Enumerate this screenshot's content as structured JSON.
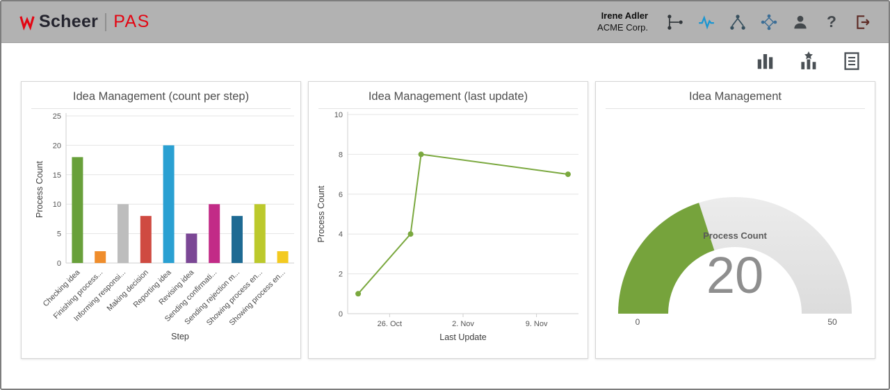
{
  "header": {
    "logo": {
      "brand": "Scheer",
      "product": "PAS"
    },
    "user": {
      "name": "Irene Adler",
      "company": "ACME Corp."
    },
    "icons": [
      {
        "name": "process-designer-icon",
        "color": "#33383c"
      },
      {
        "name": "monitoring-pulse-icon",
        "color": "#1b96d1",
        "active": true
      },
      {
        "name": "hierarchy-icon",
        "color": "#37505e"
      },
      {
        "name": "network-icon",
        "color": "#3c6e96"
      },
      {
        "name": "user-icon",
        "color": "#43484c"
      },
      {
        "name": "help-icon",
        "color": "#43484c"
      },
      {
        "name": "logout-icon",
        "color": "#5d2a24"
      }
    ]
  },
  "toolbar": {
    "icons": [
      {
        "name": "column-chart-icon",
        "color": "#4a5055"
      },
      {
        "name": "favorite-chart-icon",
        "color": "#4a5055"
      },
      {
        "name": "report-list-icon",
        "color": "#4a5055"
      }
    ]
  },
  "chart_data": [
    {
      "type": "bar",
      "title": "Idea Management (count per step)",
      "xlabel": "Step",
      "ylabel": "Process Count",
      "ylim": [
        0,
        25
      ],
      "yticks": [
        0,
        5,
        10,
        15,
        20,
        25
      ],
      "grid": true,
      "categories": [
        "Checking idea",
        "Finishing process...",
        "Informing responsi...",
        "Making decision",
        "Reporting idea",
        "Revising idea",
        "Sending confirmati...",
        "Sending rejection m...",
        "Showing process en...",
        "Showing process en..."
      ],
      "values": [
        18,
        2,
        10,
        8,
        20,
        5,
        10,
        8,
        10,
        2
      ],
      "colors": [
        "#68a03a",
        "#ef8d2c",
        "#bdbdbd",
        "#cf4a41",
        "#2aa0d2",
        "#7b4795",
        "#c22b87",
        "#1e6a93",
        "#bcc92c",
        "#f3ca20"
      ]
    },
    {
      "type": "line",
      "title": "Idea Management (last update)",
      "xlabel": "Last Update",
      "ylabel": "Process Count",
      "ylim": [
        0,
        10
      ],
      "yticks": [
        0,
        2,
        4,
        6,
        8,
        10
      ],
      "grid": true,
      "color": "#7aa83e",
      "x_domain_days": [
        0,
        22
      ],
      "x_ticks": [
        {
          "label": "26. Oct",
          "day": 4
        },
        {
          "label": "2. Nov",
          "day": 11
        },
        {
          "label": "9. Nov",
          "day": 18
        }
      ],
      "points": [
        {
          "x": "23. Oct",
          "day": 1,
          "y": 1
        },
        {
          "x": "28. Oct",
          "day": 6,
          "y": 4
        },
        {
          "x": "29. Oct",
          "day": 7,
          "y": 8
        },
        {
          "x": "12. Nov",
          "day": 21,
          "y": 7
        }
      ]
    },
    {
      "type": "gauge",
      "title": "Idea Management",
      "label": "Process Count",
      "value": 20,
      "min": 0,
      "max": 50,
      "color": "#76a33c",
      "track_color": "#dcdcdc",
      "value_color": "#8e8e8e"
    }
  ]
}
